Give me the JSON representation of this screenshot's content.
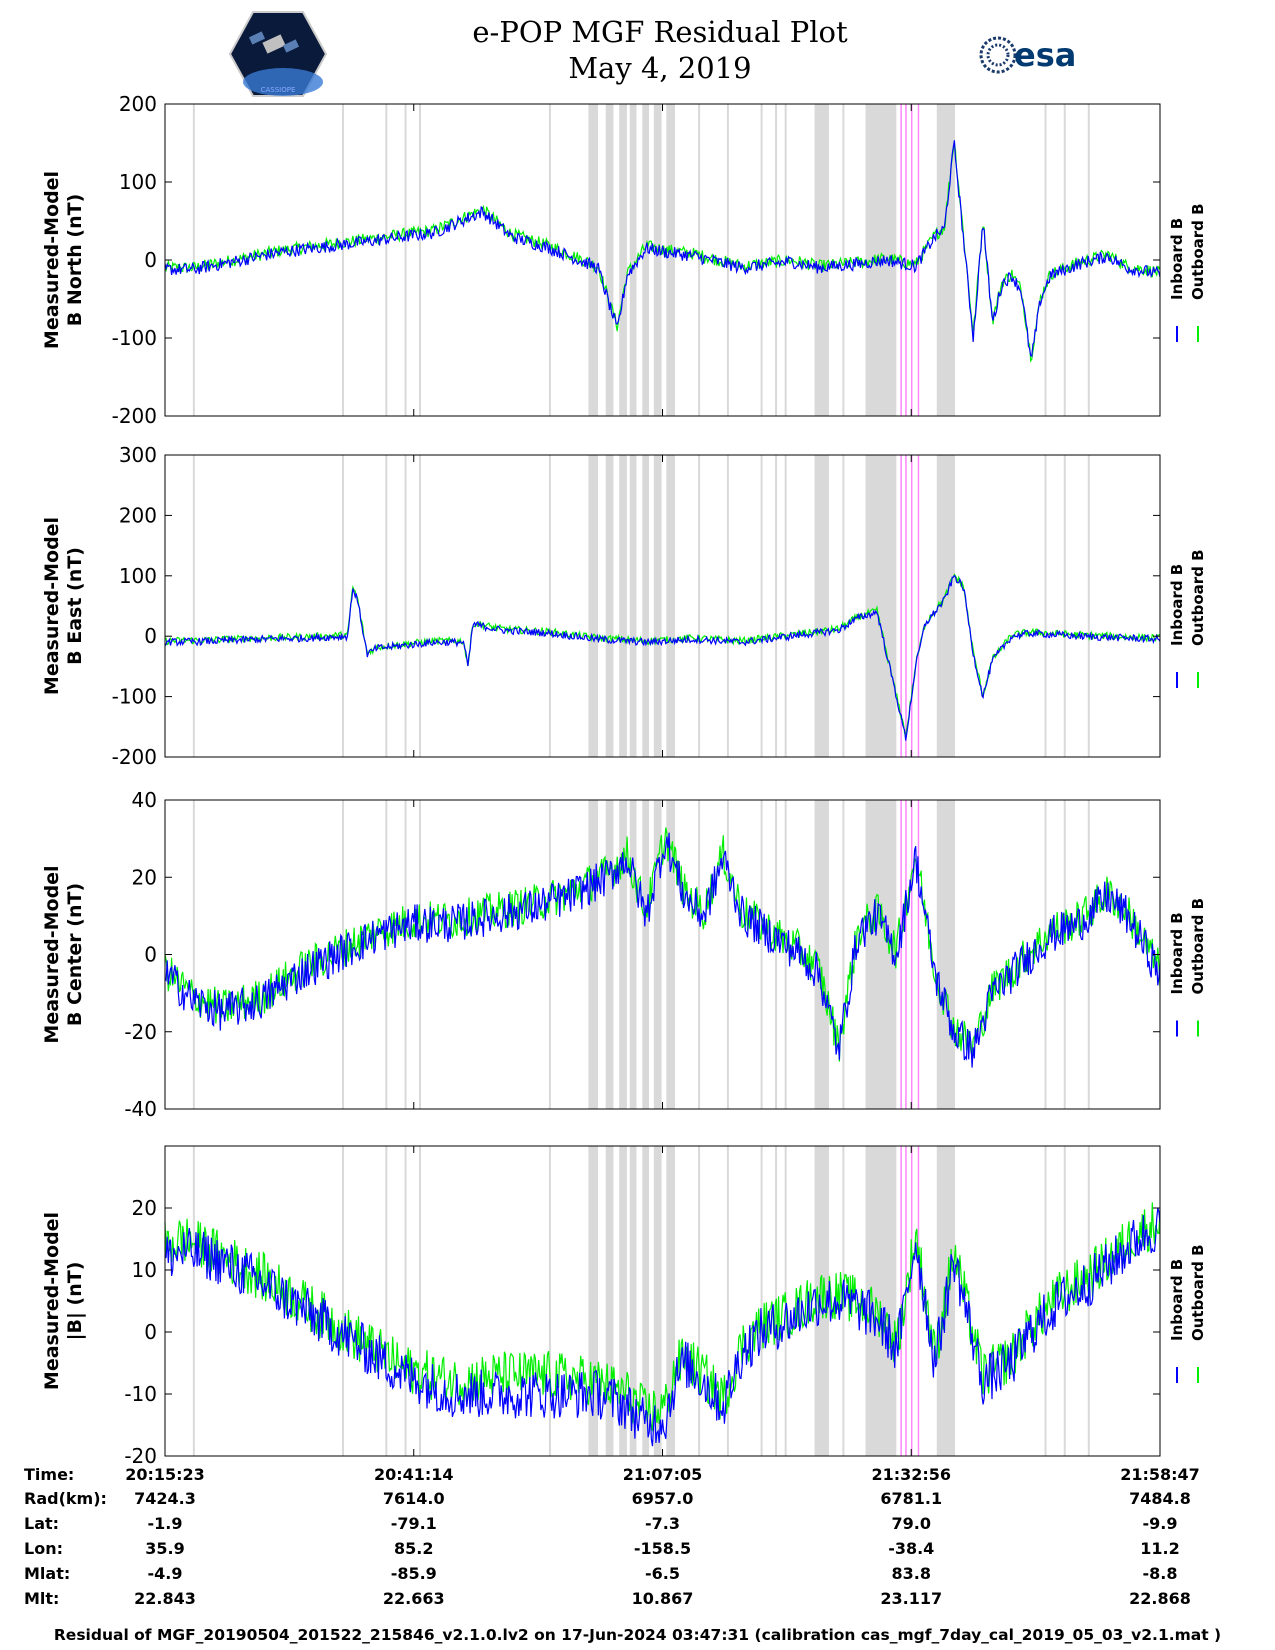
{
  "header": {
    "title_line1": "e-POP MGF Residual Plot",
    "title_line2": "May 4, 2019",
    "left_logo_text": "CASSIOPE",
    "right_logo_text": "esa"
  },
  "colors": {
    "inboard": "#0000ff",
    "outboard": "#00ee00",
    "gap": "#d9d9d9",
    "pink": "#ff88ff"
  },
  "legend_labels": [
    "Inboard B",
    "Outboard B"
  ],
  "chart_data": [
    {
      "type": "line",
      "ylabel": [
        "Measured-Model",
        "B North (nT)"
      ],
      "ylim": [
        -200,
        200
      ],
      "yticks": [
        -200,
        -100,
        0,
        100,
        200
      ],
      "x_range_min": [
        0,
        103.4
      ],
      "series": [
        {
          "name": "Inboard B",
          "x": [
            0,
            3,
            8,
            12,
            20,
            28,
            33,
            36,
            40,
            45,
            47,
            48,
            50,
            52,
            55,
            60,
            63,
            65,
            68,
            72,
            75,
            78,
            80,
            81,
            82,
            84,
            85,
            86,
            87,
            88,
            89,
            90,
            91,
            92,
            93,
            95,
            98,
            100,
            103.4
          ],
          "y": [
            -12,
            -12,
            0,
            10,
            22,
            35,
            62,
            30,
            15,
            -10,
            -90,
            -20,
            15,
            10,
            5,
            -10,
            -5,
            -2,
            -10,
            -5,
            0,
            -8,
            30,
            40,
            150,
            -100,
            50,
            -80,
            -30,
            -20,
            -40,
            -130,
            -50,
            -20,
            -15,
            -5,
            5,
            -10,
            -18
          ]
        },
        {
          "name": "Outboard B",
          "x": [
            0,
            3,
            8,
            12,
            20,
            28,
            33,
            36,
            40,
            45,
            47,
            48,
            50,
            52,
            55,
            60,
            63,
            65,
            68,
            72,
            75,
            78,
            80,
            81,
            82,
            84,
            85,
            86,
            87,
            88,
            89,
            90,
            91,
            92,
            93,
            95,
            98,
            100,
            103.4
          ],
          "y": [
            -10,
            -10,
            2,
            12,
            25,
            38,
            65,
            33,
            18,
            -8,
            -85,
            -18,
            18,
            13,
            8,
            -8,
            -3,
            0,
            -8,
            -3,
            2,
            -6,
            32,
            42,
            155,
            -95,
            52,
            -78,
            -28,
            -18,
            -38,
            -125,
            -48,
            -18,
            -13,
            -3,
            7,
            -8,
            -16
          ]
        }
      ]
    },
    {
      "type": "line",
      "ylabel": [
        "Measured-Model",
        "B East (nT)"
      ],
      "ylim": [
        -200,
        300
      ],
      "yticks": [
        -200,
        -100,
        0,
        100,
        200,
        300
      ],
      "series": [
        {
          "name": "Inboard B",
          "x": [
            0,
            5,
            10,
            15,
            19,
            19.5,
            20,
            21,
            22,
            25,
            28,
            31,
            31.5,
            32,
            35,
            40,
            45,
            50,
            55,
            60,
            65,
            70,
            72,
            74,
            75,
            76,
            77,
            78,
            79,
            80,
            81,
            82,
            83,
            84,
            85,
            86,
            88,
            90,
            95,
            100,
            103.4
          ],
          "y": [
            -10,
            -8,
            -5,
            -3,
            0,
            80,
            60,
            -30,
            -20,
            -15,
            -10,
            -10,
            -50,
            20,
            10,
            5,
            -5,
            -10,
            -5,
            -10,
            0,
            10,
            30,
            40,
            -30,
            -100,
            -170,
            -50,
            20,
            40,
            60,
            100,
            80,
            -30,
            -100,
            -40,
            0,
            5,
            0,
            -3,
            -5
          ]
        },
        {
          "name": "Outboard B",
          "x": [
            0,
            5,
            10,
            15,
            19,
            19.5,
            20,
            21,
            22,
            25,
            28,
            31,
            31.5,
            32,
            35,
            40,
            45,
            50,
            55,
            60,
            65,
            70,
            72,
            74,
            75,
            76,
            77,
            78,
            79,
            80,
            81,
            82,
            83,
            84,
            85,
            86,
            88,
            90,
            95,
            100,
            103.4
          ],
          "y": [
            -8,
            -6,
            -3,
            -1,
            2,
            82,
            62,
            -28,
            -18,
            -13,
            -8,
            -8,
            -48,
            22,
            12,
            7,
            -3,
            -8,
            -3,
            -8,
            2,
            12,
            32,
            42,
            -28,
            -98,
            -165,
            -48,
            22,
            42,
            62,
            102,
            82,
            -28,
            -98,
            -38,
            2,
            7,
            2,
            -1,
            -3
          ]
        }
      ]
    },
    {
      "type": "line",
      "ylabel": [
        "Measured-Model",
        "B Center (nT)"
      ],
      "ylim": [
        -40,
        40
      ],
      "yticks": [
        -40,
        -20,
        0,
        20,
        40
      ],
      "series": [
        {
          "name": "Inboard B",
          "x": [
            0,
            3,
            6,
            10,
            14,
            18,
            22,
            26,
            30,
            34,
            38,
            42,
            46,
            48,
            50,
            52,
            54,
            56,
            58,
            60,
            63,
            66,
            68,
            70,
            72,
            74,
            76,
            78,
            80,
            82,
            84,
            86,
            88,
            90,
            92,
            95,
            98,
            100,
            103.4
          ],
          "y": [
            -5,
            -12,
            -15,
            -12,
            -5,
            0,
            5,
            8,
            8,
            10,
            12,
            15,
            20,
            25,
            10,
            30,
            15,
            10,
            25,
            10,
            5,
            0,
            -5,
            -25,
            5,
            10,
            0,
            25,
            -5,
            -20,
            -25,
            -10,
            -5,
            0,
            5,
            8,
            15,
            10,
            -5
          ]
        },
        {
          "name": "Outboard B",
          "x": [
            0,
            3,
            6,
            10,
            14,
            18,
            22,
            26,
            30,
            34,
            38,
            42,
            46,
            48,
            50,
            52,
            54,
            56,
            58,
            60,
            63,
            66,
            68,
            70,
            72,
            74,
            76,
            78,
            80,
            82,
            84,
            86,
            88,
            90,
            92,
            95,
            98,
            100,
            103.4
          ],
          "y": [
            -4,
            -11,
            -14,
            -11,
            -4,
            1,
            6,
            9,
            9,
            11,
            13,
            16,
            21,
            26,
            11,
            31,
            16,
            11,
            26,
            11,
            6,
            1,
            -4,
            -24,
            6,
            11,
            1,
            26,
            -4,
            -19,
            -24,
            -9,
            -4,
            1,
            6,
            9,
            16,
            11,
            -4
          ]
        }
      ]
    },
    {
      "type": "line",
      "ylabel": [
        "Measured-Model",
        "|B| (nT)"
      ],
      "ylim": [
        -20,
        30
      ],
      "yticks": [
        -20,
        -10,
        0,
        10,
        20
      ],
      "series": [
        {
          "name": "Inboard B",
          "x": [
            0,
            2,
            5,
            10,
            15,
            20,
            25,
            30,
            35,
            40,
            45,
            48,
            50,
            52,
            53,
            54,
            56,
            58,
            60,
            62,
            65,
            68,
            70,
            72,
            74,
            75,
            76,
            77,
            78,
            80,
            82,
            85,
            88,
            90,
            93,
            96,
            99,
            101,
            103.4
          ],
          "y": [
            12,
            13,
            12,
            8,
            3,
            -2,
            -7,
            -10,
            -10,
            -10,
            -10,
            -12,
            -15,
            -14,
            -8,
            -5,
            -8,
            -12,
            -3,
            0,
            2,
            5,
            5,
            4,
            2,
            0,
            -3,
            5,
            15,
            -5,
            12,
            -8,
            -5,
            0,
            5,
            8,
            12,
            15,
            17
          ]
        },
        {
          "name": "Outboard B",
          "x": [
            0,
            2,
            5,
            10,
            15,
            20,
            25,
            30,
            35,
            40,
            45,
            48,
            50,
            52,
            53,
            54,
            56,
            58,
            60,
            62,
            65,
            68,
            70,
            72,
            74,
            75,
            76,
            77,
            78,
            80,
            82,
            85,
            88,
            90,
            93,
            96,
            99,
            101,
            103.4
          ],
          "y": [
            14,
            15,
            13,
            9,
            4,
            -1,
            -6,
            -8,
            -7,
            -7,
            -8,
            -10,
            -13,
            -12,
            -6,
            -4,
            -7,
            -11,
            -2,
            1,
            3,
            6,
            6,
            5,
            3,
            1,
            -2,
            6,
            16,
            -4,
            13,
            -7,
            -4,
            1,
            6,
            9,
            13,
            16,
            18
          ]
        }
      ]
    }
  ],
  "gap_bands_min": [
    [
      44.0,
      45.0
    ],
    [
      45.8,
      46.6
    ],
    [
      47.2,
      48.0
    ],
    [
      48.3,
      49.0
    ],
    [
      49.6,
      50.3
    ],
    [
      50.8,
      51.6
    ],
    [
      52.1,
      53.0
    ],
    [
      67.5,
      69.0
    ],
    [
      72.8,
      76.0
    ],
    [
      80.2,
      82.1
    ]
  ],
  "gap_lines_min": [
    3.0,
    18.5,
    23.0,
    25.0,
    26.5,
    40.0,
    55.5,
    58.5,
    62.0,
    63.5,
    64.5,
    70.5,
    91.5,
    93.5,
    96.0
  ],
  "pink_lines_min": [
    76.5,
    77.0,
    77.6,
    78.3
  ],
  "time_table": {
    "row_labels": [
      "Time:",
      "Rad(km):",
      "Lat:",
      "Lon:",
      "Mlat:",
      "Mlt:"
    ],
    "columns": [
      [
        "20:15:23",
        "7424.3",
        "-1.9",
        "35.9",
        "-4.9",
        "22.843"
      ],
      [
        "20:41:14",
        "7614.0",
        "-79.1",
        "85.2",
        "-85.9",
        "22.663"
      ],
      [
        "21:07:05",
        "6957.0",
        "-7.3",
        "-158.5",
        "-6.5",
        "10.867"
      ],
      [
        "21:32:56",
        "6781.1",
        "79.0",
        "-38.4",
        "83.8",
        "23.117"
      ],
      [
        "21:58:47",
        "7484.8",
        "-9.9",
        "11.2",
        "-8.8",
        "22.868"
      ]
    ]
  },
  "footer": "Residual of MGF_20190504_201522_215846_v2.1.0.lv2 on 17-Jun-2024 03:47:31 (calibration cas_mgf_7day_cal_2019_05_03_v2.1.mat )"
}
